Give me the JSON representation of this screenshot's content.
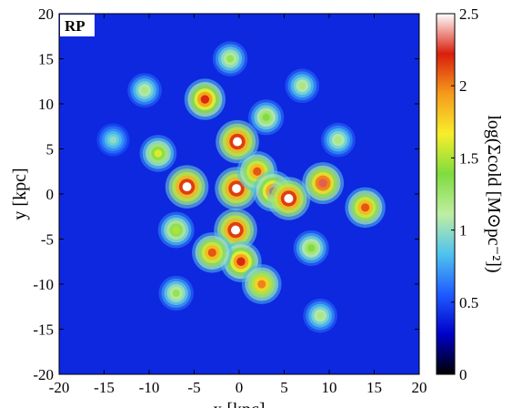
{
  "chart_data": {
    "type": "heatmap",
    "panel_label": "RP",
    "xlabel": "x [kpc]",
    "ylabel": "y [kpc]",
    "colorbar_label": "log(Σcold [M⊙pc⁻²])",
    "xlim": [
      -20,
      20
    ],
    "ylim": [
      -20,
      20
    ],
    "x_ticks": [
      -20,
      -15,
      -10,
      -5,
      0,
      5,
      10,
      15,
      20
    ],
    "y_ticks": [
      -20,
      -15,
      -10,
      -5,
      0,
      5,
      10,
      15,
      20
    ],
    "x_tick_labels": [
      "-20",
      "-15",
      "-10",
      "-5",
      "0",
      "5",
      "10",
      "15",
      "20"
    ],
    "y_tick_labels": [
      "-20",
      "-15",
      "-10",
      "-5",
      "0",
      "5",
      "10",
      "15",
      "20"
    ],
    "colorbar_range": [
      0,
      2.5
    ],
    "colorbar_ticks": [
      0,
      0.5,
      1,
      1.5,
      2,
      2.5
    ],
    "colorbar_tick_labels": [
      "0",
      "0.5",
      "1",
      "1.5",
      "2",
      "2.5"
    ],
    "colormap": [
      "#000000",
      "#0000c8",
      "#1f5bff",
      "#4fc3ee",
      "#bfeea3",
      "#7fdc3e",
      "#f7ee2b",
      "#f59b1c",
      "#d91f0c",
      "#ffffff"
    ],
    "background_value": 0.4,
    "clumps": [
      {
        "x": -5.8,
        "y": 0.8,
        "value": 2.5
      },
      {
        "x": -3.8,
        "y": 10.5,
        "value": 2.2
      },
      {
        "x": -0.2,
        "y": 5.8,
        "value": 2.5
      },
      {
        "x": -0.3,
        "y": 0.6,
        "value": 2.5
      },
      {
        "x": -0.4,
        "y": -4.0,
        "value": 2.5
      },
      {
        "x": 0.2,
        "y": -7.5,
        "value": 2.2
      },
      {
        "x": 2.0,
        "y": 2.5,
        "value": 2.1
      },
      {
        "x": 3.8,
        "y": 0.3,
        "value": 2.2
      },
      {
        "x": 5.5,
        "y": -0.5,
        "value": 2.5
      },
      {
        "x": 9.3,
        "y": 1.2,
        "value": 2.3
      },
      {
        "x": 14.0,
        "y": -1.5,
        "value": 2.1
      },
      {
        "x": -3.0,
        "y": -6.5,
        "value": 2.1
      },
      {
        "x": 2.5,
        "y": -10.0,
        "value": 2.0
      },
      {
        "x": -9.0,
        "y": 4.5,
        "value": 1.6
      },
      {
        "x": -10.5,
        "y": 11.5,
        "value": 1.2
      },
      {
        "x": 7.0,
        "y": 12.0,
        "value": 1.2
      },
      {
        "x": 9.0,
        "y": -13.5,
        "value": 1.2
      },
      {
        "x": -14.0,
        "y": 6.0,
        "value": 1.0
      },
      {
        "x": -7.0,
        "y": -11.0,
        "value": 1.3
      },
      {
        "x": 11.0,
        "y": 6.0,
        "value": 1.2
      },
      {
        "x": 8.0,
        "y": -6.0,
        "value": 1.4
      },
      {
        "x": -7.0,
        "y": -4.0,
        "value": 1.5
      },
      {
        "x": 3.0,
        "y": 8.5,
        "value": 1.4
      },
      {
        "x": -1.0,
        "y": 15.0,
        "value": 1.3
      }
    ]
  }
}
